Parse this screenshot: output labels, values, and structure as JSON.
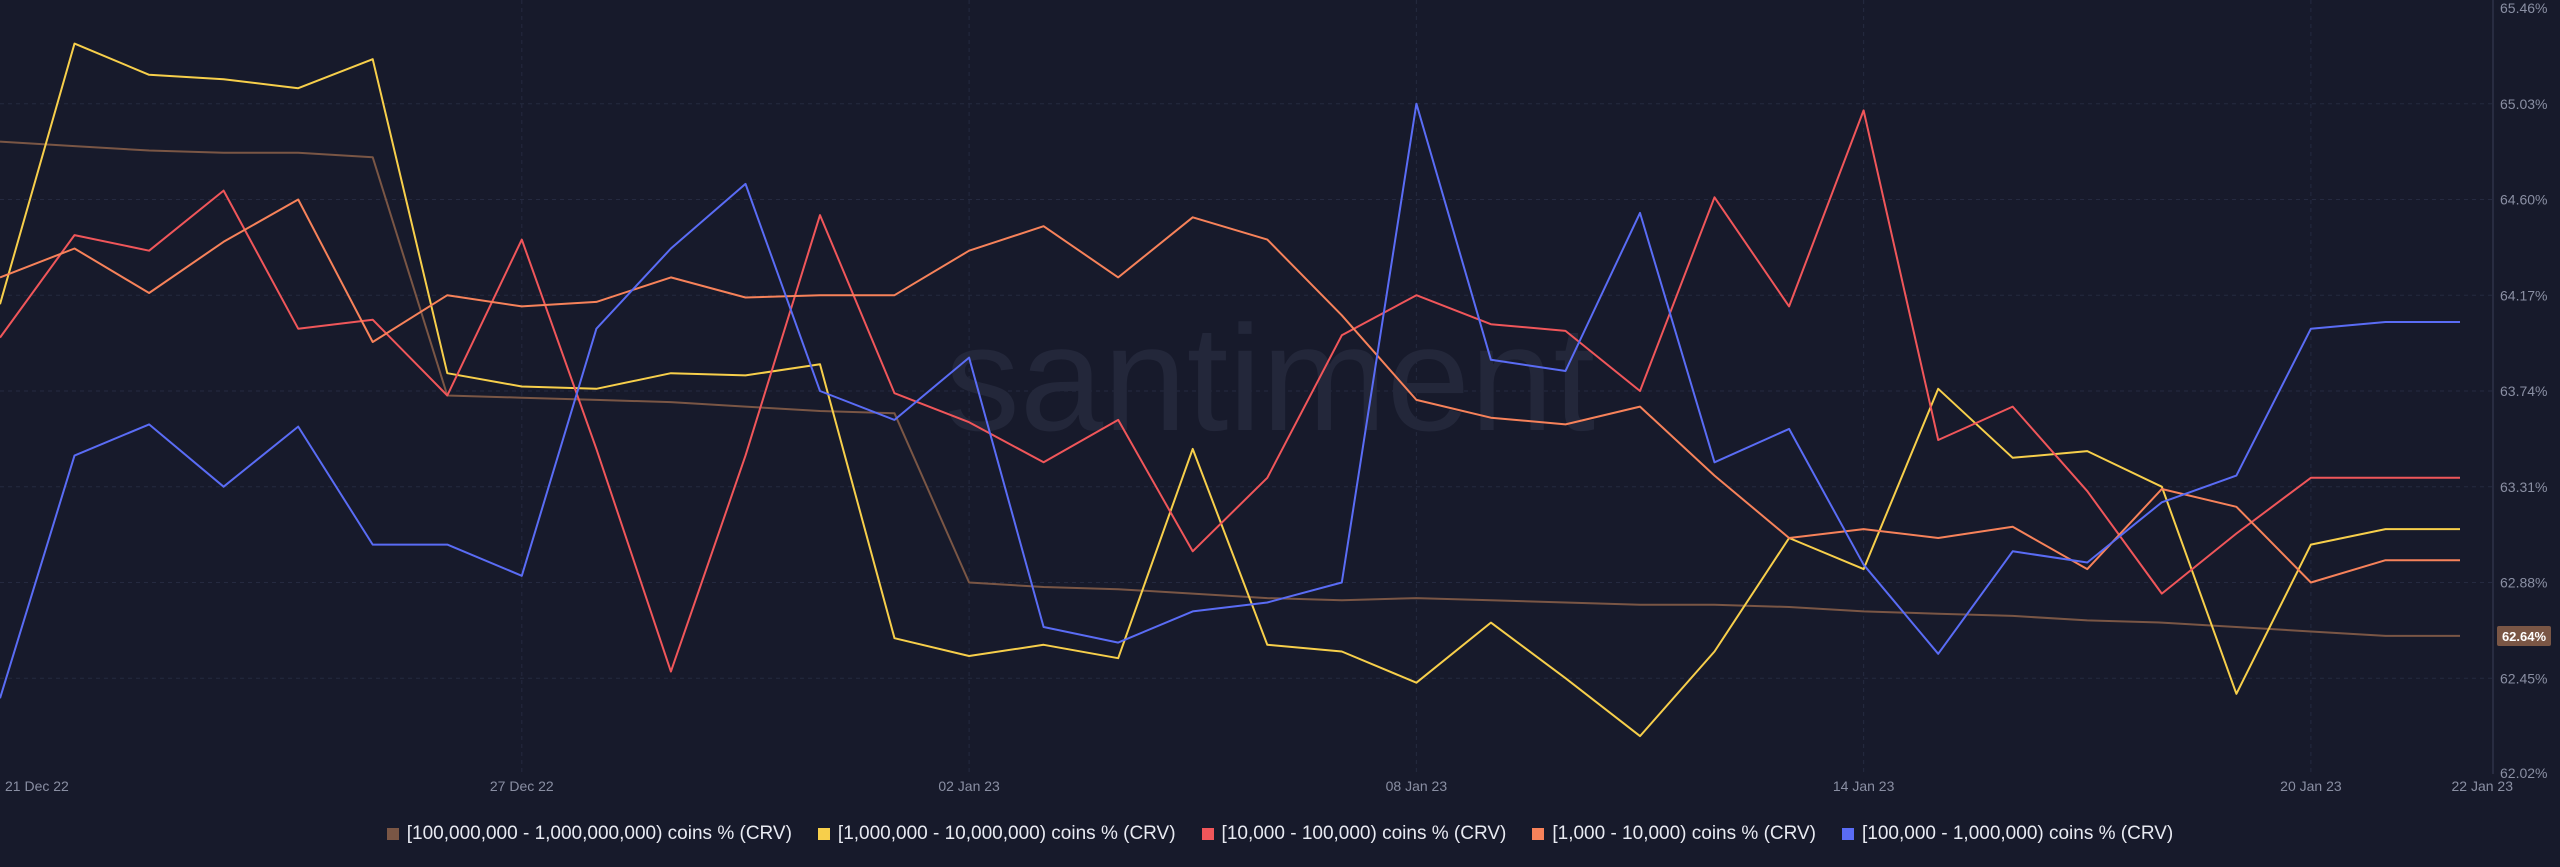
{
  "watermark": "santiment",
  "legend": [
    {
      "label": "[100,000,000 - 1,000,000,000) coins % (CRV)",
      "color": "#7a5645"
    },
    {
      "label": "[1,000,000 - 10,000,000) coins % (CRV)",
      "color": "#f7cf4b"
    },
    {
      "label": "[10,000 - 100,000) coins % (CRV)",
      "color": "#f0565a"
    },
    {
      "label": "[1,000 - 10,000) coins % (CRV)",
      "color": "#f7825a"
    },
    {
      "label": "[100,000  - 1,000,000) coins % (CRV)",
      "color": "#5a6cf5"
    }
  ],
  "current_value_badge": {
    "label": "62.64%",
    "color": "#7a5645"
  },
  "chart_data": {
    "type": "line",
    "x_tick_labels": [
      "21 Dec 22",
      "27 Dec 22",
      "02 Jan 23",
      "08 Jan 23",
      "14 Jan 23",
      "20 Jan 23",
      "22 Jan 23"
    ],
    "y_tick_labels": [
      "62.02%",
      "62.45%",
      "62.88%",
      "63.31%",
      "63.74%",
      "64.17%",
      "64.60%",
      "65.03%",
      "65.46%"
    ],
    "ylim": [
      62.02,
      65.46
    ],
    "grid": true,
    "legend_position": "bottom",
    "x": [
      "20 Dec 22",
      "21 Dec 22",
      "22 Dec 22",
      "23 Dec 22",
      "24 Dec 22",
      "25 Dec 22",
      "26 Dec 22",
      "27 Dec 22",
      "28 Dec 22",
      "29 Dec 22",
      "30 Dec 22",
      "31 Dec 22",
      "01 Jan 23",
      "02 Jan 23",
      "03 Jan 23",
      "04 Jan 23",
      "05 Jan 23",
      "06 Jan 23",
      "07 Jan 23",
      "08 Jan 23",
      "09 Jan 23",
      "10 Jan 23",
      "11 Jan 23",
      "12 Jan 23",
      "13 Jan 23",
      "14 Jan 23",
      "15 Jan 23",
      "16 Jan 23",
      "17 Jan 23",
      "18 Jan 23",
      "19 Jan 23",
      "20 Jan 23",
      "21 Jan 23",
      "22 Jan 23"
    ],
    "series": [
      {
        "name": "[100,000,000 - 1,000,000,000) coins % (CRV)",
        "color": "#7a5645",
        "values": [
          64.86,
          64.84,
          64.82,
          64.81,
          64.81,
          64.79,
          63.72,
          63.71,
          63.7,
          63.69,
          63.67,
          63.65,
          63.64,
          62.88,
          62.86,
          62.85,
          62.83,
          62.81,
          62.8,
          62.81,
          62.8,
          62.79,
          62.78,
          62.78,
          62.77,
          62.75,
          62.74,
          62.73,
          62.71,
          62.7,
          62.68,
          62.66,
          62.64,
          62.64
        ]
      },
      {
        "name": "[1,000,000 - 10,000,000) coins % (CRV)",
        "color": "#f7cf4b",
        "values": [
          64.13,
          65.3,
          65.16,
          65.14,
          65.1,
          65.23,
          63.82,
          63.76,
          63.75,
          63.82,
          63.81,
          63.86,
          62.63,
          62.55,
          62.6,
          62.54,
          63.48,
          62.6,
          62.57,
          62.43,
          62.7,
          62.45,
          62.19,
          62.57,
          63.08,
          62.94,
          63.75,
          63.44,
          63.47,
          63.31,
          62.38,
          63.05,
          63.12,
          63.12
        ]
      },
      {
        "name": "[10,000 - 100,000) coins % (CRV)",
        "color": "#f0565a",
        "values": [
          63.98,
          64.44,
          64.37,
          64.64,
          64.02,
          64.06,
          63.72,
          64.42,
          63.48,
          62.48,
          63.45,
          64.53,
          63.73,
          63.6,
          63.42,
          63.61,
          63.02,
          63.35,
          63.99,
          64.17,
          64.04,
          64.01,
          63.74,
          64.61,
          64.12,
          65.0,
          63.52,
          63.67,
          63.29,
          62.83,
          63.1,
          63.35,
          63.35,
          63.35
        ]
      },
      {
        "name": "[1,000 - 10,000) coins % (CRV)",
        "color": "#f7825a",
        "values": [
          64.25,
          64.38,
          64.18,
          64.41,
          64.6,
          63.96,
          64.17,
          64.12,
          64.14,
          64.25,
          64.16,
          64.17,
          64.17,
          64.37,
          64.48,
          64.25,
          64.52,
          64.42,
          64.08,
          63.7,
          63.62,
          63.59,
          63.67,
          63.36,
          63.08,
          63.12,
          63.08,
          63.13,
          62.94,
          63.3,
          63.22,
          62.88,
          62.98,
          62.98
        ]
      },
      {
        "name": "[100,000  - 1,000,000) coins % (CRV)",
        "color": "#5a6cf5",
        "values": [
          62.36,
          63.45,
          63.59,
          63.31,
          63.58,
          63.05,
          63.05,
          62.91,
          64.02,
          64.38,
          64.67,
          63.74,
          63.61,
          63.89,
          62.68,
          62.61,
          62.75,
          62.79,
          62.88,
          65.03,
          63.88,
          63.83,
          64.54,
          63.42,
          63.57,
          62.96,
          62.56,
          63.02,
          62.97,
          63.24,
          63.36,
          64.02,
          64.05,
          64.05
        ]
      }
    ]
  }
}
